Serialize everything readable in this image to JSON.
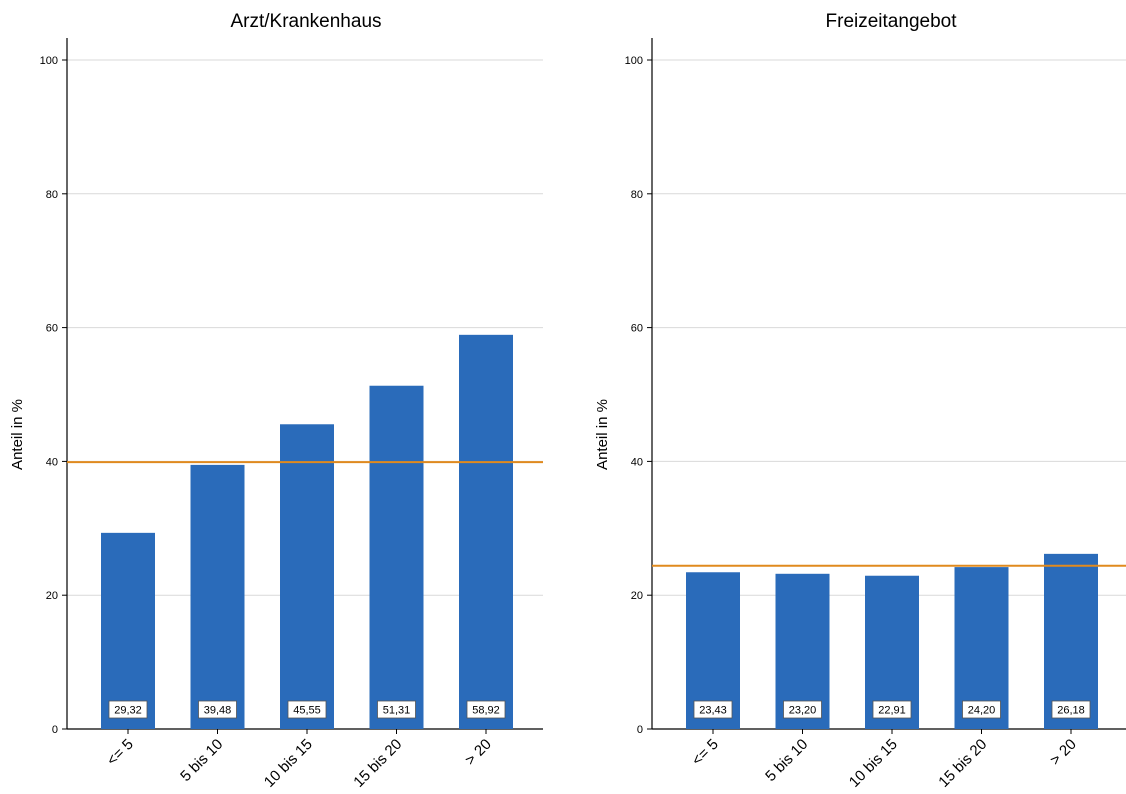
{
  "chart_data": [
    {
      "type": "bar",
      "title": "Arzt/Krankenhaus",
      "xlabel": "",
      "ylabel": "Anteil in %",
      "categories": [
        "<= 5",
        "5 bis 10",
        "10 bis 15",
        "15 bis 20",
        "> 20"
      ],
      "values": [
        29.32,
        39.48,
        45.55,
        51.31,
        58.92
      ],
      "value_labels": [
        "29,32",
        "39,48",
        "45,55",
        "51,31",
        "58,92"
      ],
      "reference_line": 39.9,
      "ylim": [
        0,
        100
      ],
      "yticks": [
        0,
        20,
        40,
        60,
        80,
        100
      ],
      "grid": true,
      "bar_color": "#2a6bba",
      "reference_color": "#e08a1e"
    },
    {
      "type": "bar",
      "title": "Freizeitangebot",
      "xlabel": "",
      "ylabel": "Anteil in %",
      "categories": [
        "<= 5",
        "5 bis 10",
        "10 bis 15",
        "15 bis 20",
        "> 20"
      ],
      "values": [
        23.43,
        23.2,
        22.91,
        24.2,
        26.18
      ],
      "value_labels": [
        "23,43",
        "23,20",
        "22,91",
        "24,20",
        "26,18"
      ],
      "reference_line": 24.4,
      "ylim": [
        0,
        100
      ],
      "yticks": [
        0,
        20,
        40,
        60,
        80,
        100
      ],
      "grid": true,
      "bar_color": "#2a6bba",
      "reference_color": "#e08a1e"
    }
  ]
}
